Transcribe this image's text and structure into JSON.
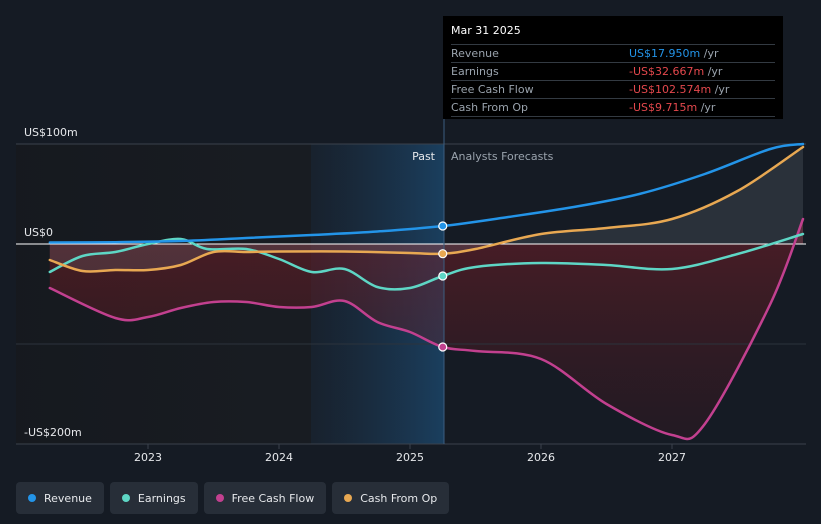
{
  "chart_data": {
    "type": "line",
    "y_labels": [
      "US$100m",
      "US$0",
      "-US$200m"
    ],
    "x_ticks": [
      "2023",
      "2024",
      "2025",
      "2026",
      "2027"
    ],
    "past_label": "Past",
    "forecast_label": "Analysts Forecasts",
    "ylim": [
      -200,
      100
    ],
    "series": [
      {
        "name": "Revenue",
        "color": "#2394e8",
        "x": [
          2022.25,
          2022.75,
          2023.25,
          2023.75,
          2024.25,
          2024.75,
          2025.25,
          2025.75,
          2026.25,
          2026.75,
          2027.25,
          2027.75,
          2028.0
        ],
        "y": [
          1.5,
          1.8,
          3.0,
          6.0,
          9.0,
          12.5,
          18.0,
          27.0,
          37.0,
          50.0,
          70.0,
          95.0,
          100.0
        ]
      },
      {
        "name": "Earnings",
        "color": "#5ed6c5",
        "x": [
          2022.25,
          2022.5,
          2022.75,
          2023.0,
          2023.25,
          2023.45,
          2023.75,
          2024.0,
          2024.25,
          2024.5,
          2024.75,
          2025.0,
          2025.25,
          2025.5,
          2026.0,
          2026.5,
          2027.0,
          2027.5,
          2028.0
        ],
        "y": [
          -28,
          -12,
          -8,
          0,
          5,
          -5,
          -5,
          -15,
          -28,
          -25,
          -43,
          -44,
          -32,
          -23,
          -19,
          -21,
          -25,
          -10,
          10
        ]
      },
      {
        "name": "Free Cash Flow",
        "color": "#c2408f",
        "x": [
          2022.25,
          2022.75,
          2023.0,
          2023.25,
          2023.5,
          2023.75,
          2024.0,
          2024.25,
          2024.5,
          2024.75,
          2025.0,
          2025.25,
          2025.5,
          2026.0,
          2026.5,
          2027.0,
          2027.25,
          2027.75,
          2028.0
        ],
        "y": [
          -44,
          -74,
          -73,
          -64,
          -58,
          -58,
          -63,
          -63,
          -57,
          -78,
          -88,
          -103,
          -107,
          -115,
          -160,
          -191,
          -180,
          -60,
          25
        ]
      },
      {
        "name": "Cash From Op",
        "color": "#e8a852",
        "x": [
          2022.25,
          2022.5,
          2022.75,
          2023.0,
          2023.25,
          2023.5,
          2023.75,
          2024.0,
          2024.5,
          2025.0,
          2025.25,
          2025.5,
          2026.0,
          2026.5,
          2027.0,
          2027.5,
          2028.0
        ],
        "y": [
          -16,
          -27,
          -26,
          -26,
          -21,
          -8,
          -8,
          -7.5,
          -7.5,
          -9,
          -9.7,
          -5,
          10,
          16,
          25,
          53,
          97
        ]
      }
    ],
    "highlight_x": 2025.25
  },
  "tooltip": {
    "date": "Mar 31 2025",
    "rows": [
      {
        "label": "Revenue",
        "value": "US$17.950m",
        "unit": " /yr",
        "color": "#2394e8"
      },
      {
        "label": "Earnings",
        "value": "-US$32.667m",
        "unit": " /yr",
        "color": "#e5484d"
      },
      {
        "label": "Free Cash Flow",
        "value": "-US$102.574m",
        "unit": " /yr",
        "color": "#e5484d"
      },
      {
        "label": "Cash From Op",
        "value": "-US$9.715m",
        "unit": " /yr",
        "color": "#e5484d"
      }
    ]
  },
  "legend": [
    {
      "label": "Revenue",
      "color": "#2394e8"
    },
    {
      "label": "Earnings",
      "color": "#5ed6c5"
    },
    {
      "label": "Free Cash Flow",
      "color": "#c2408f"
    },
    {
      "label": "Cash From Op",
      "color": "#e8a852"
    }
  ]
}
